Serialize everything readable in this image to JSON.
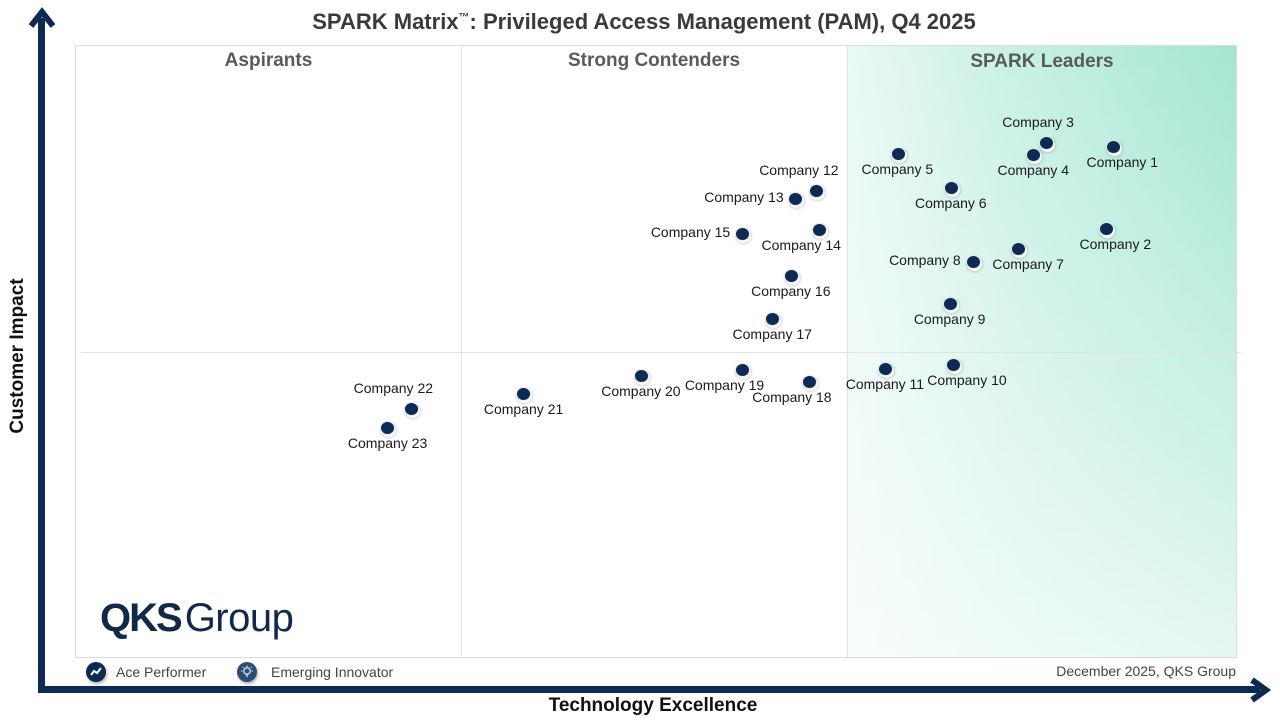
{
  "title": {
    "main": "SPARK Matrix",
    "tm": "™",
    "rest": ": Privileged Access Management (PAM), Q4 2025"
  },
  "quadrants": {
    "aspirants": "Aspirants",
    "strong_contenders": "Strong Contenders",
    "leaders": "SPARK Leaders"
  },
  "axes": {
    "x_label": "Technology Excellence",
    "y_label": "Customer Impact"
  },
  "logo": {
    "bold": "QKS",
    "light": "Group"
  },
  "legend": {
    "ace": "Ace Performer",
    "innovator": "Emerging Innovator"
  },
  "footnote": "December  2025, QKS Group",
  "colors": {
    "dot": "#0d2b52",
    "axis": "#0d2b52",
    "leaders_gradient": "#a4e6d2"
  },
  "chart_data": {
    "type": "scatter",
    "title": "SPARK Matrix™: Privileged Access Management (PAM), Q4 2025",
    "xlabel": "Technology Excellence",
    "ylabel": "Customer Impact",
    "xlim": [
      0,
      100
    ],
    "ylim": [
      0,
      100
    ],
    "grid": false,
    "quadrant_dividers": {
      "x": [
        33.3,
        66.6
      ],
      "y": [
        50
      ]
    },
    "legend_position": "bottom-left",
    "points": [
      {
        "name": "Company 1",
        "x": 89.2,
        "y": 83.7,
        "label_pos": "below-right"
      },
      {
        "name": "Company 2",
        "x": 88.6,
        "y": 70.3,
        "label_pos": "below-right"
      },
      {
        "name": "Company 3",
        "x": 83.5,
        "y": 84.3,
        "label_pos": "above"
      },
      {
        "name": "Company 4",
        "x": 82.4,
        "y": 82.4,
        "label_pos": "below"
      },
      {
        "name": "Company 5",
        "x": 70.7,
        "y": 82.5,
        "label_pos": "below"
      },
      {
        "name": "Company 6",
        "x": 75.3,
        "y": 77.0,
        "label_pos": "below"
      },
      {
        "name": "Company 7",
        "x": 81.1,
        "y": 67.0,
        "label_pos": "below-right"
      },
      {
        "name": "Company 8",
        "x": 77.2,
        "y": 64.9,
        "label_pos": "left"
      },
      {
        "name": "Company 9",
        "x": 75.2,
        "y": 58.1,
        "label_pos": "below"
      },
      {
        "name": "Company 10",
        "x": 75.5,
        "y": 48.1,
        "label_pos": "below-right"
      },
      {
        "name": "Company 11",
        "x": 69.6,
        "y": 47.5,
        "label_pos": "below"
      },
      {
        "name": "Company 12",
        "x": 63.7,
        "y": 76.5,
        "label_pos": "above-left"
      },
      {
        "name": "Company 13",
        "x": 61.9,
        "y": 75.2,
        "label_pos": "left"
      },
      {
        "name": "Company 14",
        "x": 63.9,
        "y": 70.1,
        "label_pos": "below-left"
      },
      {
        "name": "Company 15",
        "x": 57.3,
        "y": 69.5,
        "label_pos": "left"
      },
      {
        "name": "Company 16",
        "x": 61.5,
        "y": 62.6,
        "label_pos": "below"
      },
      {
        "name": "Company 17",
        "x": 59.9,
        "y": 55.6,
        "label_pos": "below"
      },
      {
        "name": "Company 18",
        "x": 63.1,
        "y": 45.4,
        "label_pos": "below-left"
      },
      {
        "name": "Company 19",
        "x": 57.3,
        "y": 47.3,
        "label_pos": "below-left"
      },
      {
        "name": "Company 20",
        "x": 48.6,
        "y": 46.3,
        "label_pos": "below"
      },
      {
        "name": "Company 21",
        "x": 38.5,
        "y": 43.4,
        "label_pos": "below"
      },
      {
        "name": "Company 22",
        "x": 28.8,
        "y": 40.9,
        "label_pos": "above-left"
      },
      {
        "name": "Company 23",
        "x": 26.8,
        "y": 37.8,
        "label_pos": "below"
      }
    ]
  }
}
